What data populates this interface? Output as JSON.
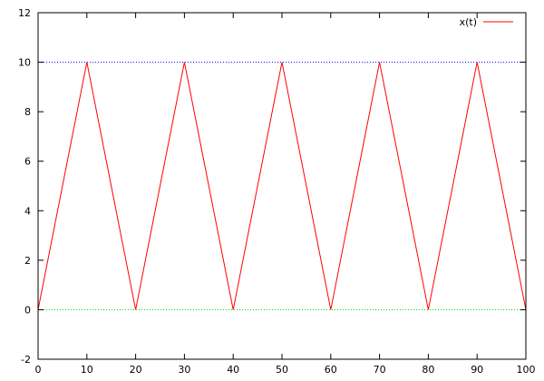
{
  "chart_data": {
    "type": "line",
    "title": "",
    "xlabel": "",
    "ylabel": "",
    "xlim": [
      0,
      100
    ],
    "ylim": [
      -2,
      12
    ],
    "x_ticks": [
      0,
      10,
      20,
      30,
      40,
      50,
      60,
      70,
      80,
      90,
      100
    ],
    "y_ticks": [
      -2,
      0,
      2,
      4,
      6,
      8,
      10,
      12
    ],
    "x_tick_labels": [
      "0",
      "10",
      "20",
      "30",
      "40",
      "50",
      "60",
      "70",
      "80",
      "90",
      "100"
    ],
    "y_tick_labels": [
      "-2",
      "0",
      "2",
      "4",
      "6",
      "8",
      "10",
      "12"
    ],
    "grid": false,
    "legend_position": "top-right",
    "series": [
      {
        "name": "x(t)",
        "color": "#ff0000",
        "style": "solid",
        "x": [
          0,
          10,
          20,
          30,
          40,
          50,
          60,
          70,
          80,
          90,
          100
        ],
        "y": [
          0,
          10,
          0,
          10,
          0,
          10,
          0,
          10,
          0,
          10,
          0
        ]
      }
    ],
    "reference_lines": [
      {
        "y": 10,
        "color": "#0000ff",
        "style": "dotted"
      },
      {
        "y": 0,
        "color": "#00cc00",
        "style": "dotted"
      }
    ]
  }
}
